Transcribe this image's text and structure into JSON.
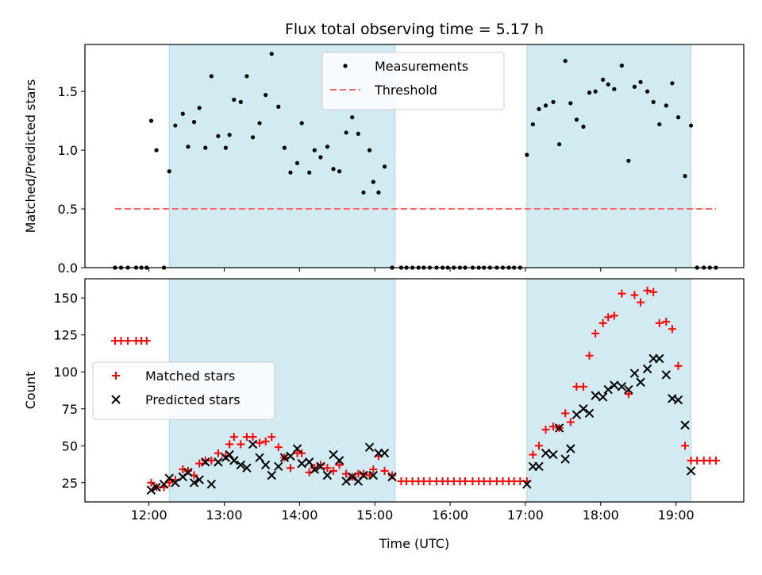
{
  "colors": {
    "shade": "#add8e6",
    "measurement": "#000000",
    "threshold": "#ff6666",
    "matched": "#ff0000",
    "predicted": "#000000"
  },
  "chart_data": [
    {
      "type": "scatter",
      "title": "Flux total observing time = 5.17 h",
      "xlabel": "",
      "ylabel": "Matched/Predicted stars",
      "xlim": [
        11.15,
        19.9
      ],
      "ylim": [
        0,
        1.9
      ],
      "yticks": [
        0.0,
        0.5,
        1.0,
        1.5
      ],
      "ytick_labels": [
        "0.0",
        "0.5",
        "1.0",
        "1.5"
      ],
      "shaded_intervals": [
        [
          12.27,
          15.27
        ],
        [
          17.02,
          19.2
        ]
      ],
      "threshold": 0.5,
      "legend": {
        "position": "upper-center",
        "entries": [
          "Measurements",
          "Threshold"
        ]
      },
      "series": [
        {
          "name": "Measurements",
          "marker": "dot",
          "x": [
            11.55,
            11.63,
            11.72,
            11.83,
            11.9,
            11.97,
            12.03,
            12.1,
            12.2,
            12.27,
            12.35,
            12.45,
            12.52,
            12.6,
            12.67,
            12.75,
            12.83,
            12.92,
            13.02,
            13.07,
            13.13,
            13.22,
            13.3,
            13.38,
            13.47,
            13.55,
            13.63,
            13.72,
            13.8,
            13.88,
            13.97,
            14.03,
            14.13,
            14.2,
            14.28,
            14.37,
            14.45,
            14.53,
            14.62,
            14.7,
            14.78,
            14.85,
            14.93,
            14.98,
            15.05,
            15.13,
            15.23,
            15.35,
            15.42,
            15.5,
            15.58,
            15.65,
            15.73,
            15.82,
            15.9,
            15.97,
            16.05,
            16.13,
            16.2,
            16.3,
            16.38,
            16.45,
            16.53,
            16.62,
            16.7,
            16.78,
            16.85,
            16.93,
            17.02,
            17.1,
            17.18,
            17.27,
            17.37,
            17.45,
            17.53,
            17.6,
            17.68,
            17.77,
            17.85,
            17.93,
            18.03,
            18.1,
            18.18,
            18.28,
            18.37,
            18.45,
            18.53,
            18.62,
            18.7,
            18.78,
            18.87,
            18.95,
            19.03,
            19.12,
            19.2,
            19.28,
            19.37,
            19.45,
            19.53
          ],
          "y": [
            0,
            0,
            0,
            0,
            0,
            0,
            1.25,
            1.0,
            0,
            0.82,
            1.21,
            1.31,
            1.03,
            1.24,
            1.36,
            1.02,
            1.63,
            1.12,
            1.02,
            1.13,
            1.43,
            1.41,
            1.63,
            1.11,
            1.23,
            1.47,
            1.82,
            1.37,
            1.02,
            0.81,
            0.89,
            1.23,
            0.81,
            1.0,
            0.94,
            1.03,
            0.84,
            0.82,
            1.15,
            1.28,
            1.14,
            0.64,
            1.0,
            0.73,
            0.64,
            0.86,
            0,
            0,
            0,
            0,
            0,
            0,
            0,
            0,
            0,
            0,
            0,
            0,
            0,
            0,
            0,
            0,
            0,
            0,
            0,
            0,
            0,
            0,
            0.96,
            1.22,
            1.35,
            1.38,
            1.41,
            1.05,
            1.76,
            1.4,
            1.26,
            1.2,
            1.49,
            1.5,
            1.6,
            1.56,
            1.52,
            1.72,
            0.91,
            1.54,
            1.58,
            1.5,
            1.41,
            1.22,
            1.38,
            1.57,
            1.28,
            0.78,
            1.21,
            0,
            0,
            0,
            0
          ]
        },
        {
          "name": "Threshold",
          "style": "dashed",
          "x": [
            11.55,
            19.53
          ],
          "y": [
            0.5,
            0.5
          ]
        }
      ]
    },
    {
      "type": "scatter",
      "title": "",
      "xlabel": "Time (UTC)",
      "ylabel": "Count",
      "xlim": [
        11.15,
        19.9
      ],
      "ylim": [
        12,
        163
      ],
      "xticks": [
        12,
        13,
        14,
        15,
        16,
        17,
        18,
        19
      ],
      "xtick_labels": [
        "12:00",
        "13:00",
        "14:00",
        "15:00",
        "16:00",
        "17:00",
        "18:00",
        "19:00"
      ],
      "yticks": [
        25,
        50,
        75,
        100,
        125,
        150
      ],
      "ytick_labels": [
        "25",
        "50",
        "75",
        "100",
        "125",
        "150"
      ],
      "shaded_intervals": [
        [
          12.27,
          15.27
        ],
        [
          17.02,
          19.2
        ]
      ],
      "legend": {
        "position": "center-left",
        "entries": [
          "Matched stars",
          "Predicted stars"
        ]
      },
      "series": [
        {
          "name": "Matched stars",
          "marker": "plus",
          "x": [
            11.55,
            11.63,
            11.72,
            11.83,
            11.9,
            11.97,
            12.03,
            12.1,
            12.2,
            12.27,
            12.35,
            12.45,
            12.52,
            12.6,
            12.67,
            12.75,
            12.83,
            12.92,
            13.02,
            13.07,
            13.13,
            13.22,
            13.3,
            13.38,
            13.47,
            13.55,
            13.63,
            13.72,
            13.8,
            13.88,
            13.97,
            14.03,
            14.13,
            14.2,
            14.28,
            14.37,
            14.45,
            14.53,
            14.62,
            14.7,
            14.78,
            14.85,
            14.93,
            14.98,
            15.05,
            15.13,
            15.23,
            15.35,
            15.42,
            15.5,
            15.58,
            15.65,
            15.73,
            15.82,
            15.9,
            15.97,
            16.05,
            16.13,
            16.2,
            16.3,
            16.38,
            16.45,
            16.53,
            16.62,
            16.7,
            16.78,
            16.85,
            16.93,
            17.02,
            17.1,
            17.18,
            17.27,
            17.37,
            17.45,
            17.53,
            17.6,
            17.68,
            17.77,
            17.85,
            17.93,
            18.03,
            18.1,
            18.18,
            18.28,
            18.37,
            18.45,
            18.53,
            18.62,
            18.7,
            18.78,
            18.87,
            18.95,
            19.03,
            19.12,
            19.2,
            19.28,
            19.37,
            19.45,
            19.53
          ],
          "y": [
            121,
            121,
            121,
            121,
            121,
            121,
            25,
            22,
            22,
            25,
            27,
            34,
            33,
            30,
            38,
            40,
            40,
            45,
            43,
            51,
            56,
            51,
            56,
            56,
            52,
            53,
            56,
            49,
            42,
            35,
            45,
            45,
            32,
            35,
            37,
            35,
            33,
            37,
            31,
            29,
            31,
            31,
            30,
            34,
            43,
            33,
            30,
            26,
            26,
            26,
            26,
            26,
            26,
            26,
            26,
            26,
            26,
            26,
            26,
            26,
            26,
            26,
            26,
            26,
            26,
            26,
            26,
            26,
            26,
            44,
            50,
            61,
            63,
            62,
            72,
            66,
            90,
            90,
            111,
            126,
            133,
            137,
            138,
            153,
            85,
            152,
            147,
            155,
            154,
            133,
            134,
            129,
            104,
            50,
            40,
            40,
            40,
            40,
            40
          ]
        },
        {
          "name": "Predicted stars",
          "marker": "x",
          "x": [
            12.03,
            12.1,
            12.2,
            12.27,
            12.35,
            12.45,
            12.52,
            12.6,
            12.67,
            12.75,
            12.83,
            12.92,
            13.02,
            13.07,
            13.13,
            13.22,
            13.3,
            13.38,
            13.47,
            13.55,
            13.63,
            13.72,
            13.8,
            13.88,
            13.97,
            14.03,
            14.13,
            14.2,
            14.28,
            14.37,
            14.45,
            14.53,
            14.62,
            14.7,
            14.78,
            14.85,
            14.93,
            14.98,
            15.05,
            15.13,
            15.23,
            17.02,
            17.1,
            17.18,
            17.27,
            17.37,
            17.45,
            17.53,
            17.6,
            17.68,
            17.77,
            17.85,
            17.93,
            18.03,
            18.1,
            18.18,
            18.28,
            18.37,
            18.45,
            18.53,
            18.62,
            18.7,
            18.78,
            18.87,
            18.95,
            19.03,
            19.12,
            19.2
          ],
          "y": [
            20,
            22,
            24,
            28,
            25,
            29,
            32,
            25,
            27,
            39,
            24,
            39,
            42,
            44,
            40,
            37,
            35,
            51,
            42,
            37,
            30,
            36,
            42,
            43,
            48,
            38,
            39,
            34,
            36,
            30,
            44,
            40,
            26,
            29,
            26,
            30,
            49,
            30,
            45,
            45,
            29,
            24,
            36,
            36,
            45,
            44,
            62,
            41,
            48,
            71,
            75,
            72,
            84,
            83,
            88,
            91,
            90,
            88,
            99,
            93,
            102,
            109,
            109,
            98,
            82,
            81,
            64,
            33
          ]
        }
      ]
    }
  ]
}
